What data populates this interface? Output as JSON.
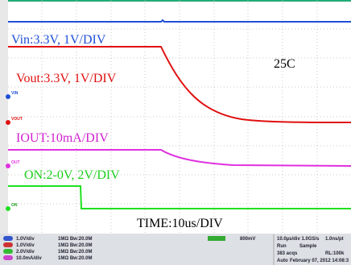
{
  "traces": {
    "vin": "Vin:3.3V, 1V/DIV",
    "vout": "Vout:3.3V, 1V/DIV",
    "iout": "IOUT:10mA/DIV",
    "on": "ON:2-0V, 2V/DIV"
  },
  "temperature": "25C",
  "timebase": "TIME:10us/DIV",
  "markers": [
    "VIN",
    "VOUT",
    "OUT",
    "ON"
  ],
  "channels": [
    {
      "scale": "1.0V/div",
      "input": "1MΩ Bw:20.0M"
    },
    {
      "scale": "1.0V/div",
      "input": "1MΩ Bw:20.0M"
    },
    {
      "scale": "2.0V/div",
      "input": "1MΩ Bw:20.0M"
    },
    {
      "scale": "10.0mA/div",
      "input": "1MΩ Bw:20.0M"
    }
  ],
  "trigger": "800mV",
  "status": [
    [
      "10.0µs/div 1.0GS/s",
      "1.0ns/pt"
    ],
    [
      "Run",
      "Sample"
    ],
    [
      "383 acqs",
      "RL:100k"
    ],
    [
      "Auto",
      "February 07, 2012  14:08:3"
    ]
  ]
}
